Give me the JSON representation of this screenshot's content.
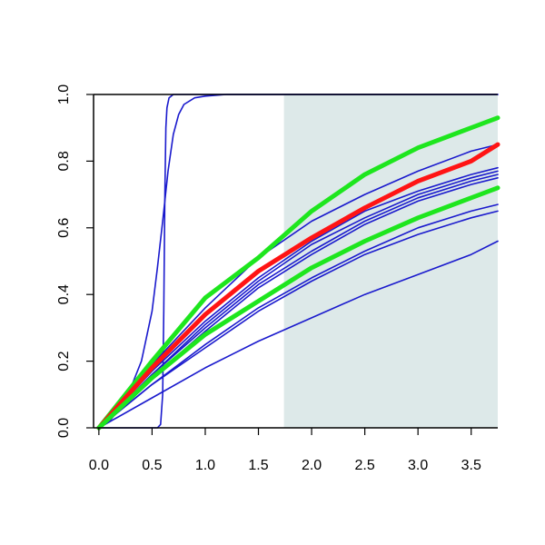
{
  "chart_data": {
    "type": "line",
    "title": "",
    "xlabel": "",
    "ylabel": "",
    "xlim": [
      -0.05,
      3.75
    ],
    "ylim": [
      0,
      1
    ],
    "x_ticks": [
      "0.0",
      "0.5",
      "1.0",
      "1.5",
      "2.0",
      "2.5",
      "3.0",
      "3.5"
    ],
    "y_ticks": [
      "0.0",
      "0.2",
      "0.4",
      "0.6",
      "0.8",
      "1.0"
    ],
    "shaded_region": {
      "x_from": 1.74,
      "x_to": 3.75,
      "color": "#dde9e9"
    },
    "colors": {
      "blue": "#1a1acd",
      "red": "#ff1414",
      "green": "#1ee61e",
      "axis": "#000000"
    },
    "series": [
      {
        "color": "blue",
        "width": 1.6,
        "x": [
          0,
          0.55,
          0.58,
          0.6,
          0.61,
          0.62,
          0.63,
          0.64,
          0.66,
          0.7,
          1.0,
          3.75
        ],
        "y": [
          0,
          0,
          0.01,
          0.1,
          0.35,
          0.7,
          0.9,
          0.96,
          0.99,
          1.0,
          1.0,
          1.0
        ]
      },
      {
        "color": "blue",
        "width": 1.6,
        "x": [
          0,
          0.1,
          0.2,
          0.3,
          0.4,
          0.5,
          0.55,
          0.6,
          0.65,
          0.7,
          0.75,
          0.8,
          0.9,
          1.0,
          1.2,
          1.5,
          3.75
        ],
        "y": [
          0,
          0.02,
          0.06,
          0.12,
          0.2,
          0.35,
          0.48,
          0.62,
          0.77,
          0.88,
          0.94,
          0.97,
          0.99,
          0.995,
          1.0,
          1.0,
          1.0
        ]
      },
      {
        "color": "blue",
        "width": 1.6,
        "x": [
          0,
          0.5,
          1,
          1.5,
          2,
          2.5,
          3,
          3.5,
          3.75
        ],
        "y": [
          0,
          0.19,
          0.36,
          0.51,
          0.62,
          0.7,
          0.77,
          0.83,
          0.85
        ]
      },
      {
        "color": "blue",
        "width": 1.6,
        "x": [
          0,
          0.5,
          1,
          1.5,
          2,
          2.5,
          3,
          3.5,
          3.75
        ],
        "y": [
          0,
          0.17,
          0.32,
          0.45,
          0.56,
          0.65,
          0.71,
          0.76,
          0.78
        ]
      },
      {
        "color": "blue",
        "width": 1.6,
        "x": [
          0,
          0.5,
          1,
          1.5,
          2,
          2.5,
          3,
          3.5,
          3.75
        ],
        "y": [
          0,
          0.16,
          0.31,
          0.44,
          0.55,
          0.63,
          0.7,
          0.75,
          0.77
        ]
      },
      {
        "color": "blue",
        "width": 1.6,
        "x": [
          0,
          0.5,
          1,
          1.5,
          2,
          2.5,
          3,
          3.5,
          3.75
        ],
        "y": [
          0,
          0.16,
          0.3,
          0.43,
          0.53,
          0.62,
          0.69,
          0.74,
          0.76
        ]
      },
      {
        "color": "blue",
        "width": 1.6,
        "x": [
          0,
          0.5,
          1,
          1.5,
          2,
          2.5,
          3,
          3.5,
          3.75
        ],
        "y": [
          0,
          0.15,
          0.29,
          0.42,
          0.52,
          0.61,
          0.68,
          0.73,
          0.75
        ]
      },
      {
        "color": "blue",
        "width": 1.6,
        "x": [
          0,
          0.5,
          1,
          1.5,
          2,
          2.5,
          3,
          3.5,
          3.75
        ],
        "y": [
          0,
          0.13,
          0.25,
          0.36,
          0.45,
          0.53,
          0.6,
          0.65,
          0.67
        ]
      },
      {
        "color": "blue",
        "width": 1.6,
        "x": [
          0,
          0.5,
          1,
          1.5,
          2,
          2.5,
          3,
          3.5,
          3.75
        ],
        "y": [
          0,
          0.13,
          0.24,
          0.35,
          0.44,
          0.52,
          0.58,
          0.63,
          0.65
        ]
      },
      {
        "color": "blue",
        "width": 1.6,
        "x": [
          0,
          0.5,
          1,
          1.5,
          2,
          2.5,
          3,
          3.5,
          3.75
        ],
        "y": [
          0,
          0.09,
          0.18,
          0.26,
          0.33,
          0.4,
          0.46,
          0.52,
          0.56
        ]
      },
      {
        "color": "green",
        "width": 5,
        "x": [
          0,
          0.5,
          1,
          1.5,
          2,
          2.5,
          3,
          3.5,
          3.75
        ],
        "y": [
          0,
          0.2,
          0.39,
          0.51,
          0.65,
          0.76,
          0.84,
          0.9,
          0.93
        ]
      },
      {
        "color": "red",
        "width": 5,
        "x": [
          0,
          0.5,
          1,
          1.5,
          2,
          2.5,
          3,
          3.5,
          3.75
        ],
        "y": [
          0,
          0.18,
          0.34,
          0.47,
          0.57,
          0.66,
          0.74,
          0.8,
          0.85
        ]
      },
      {
        "color": "green",
        "width": 5,
        "x": [
          0,
          0.5,
          1,
          1.5,
          2,
          2.5,
          3,
          3.5,
          3.75
        ],
        "y": [
          0,
          0.15,
          0.28,
          0.38,
          0.48,
          0.56,
          0.63,
          0.69,
          0.72
        ]
      }
    ]
  }
}
